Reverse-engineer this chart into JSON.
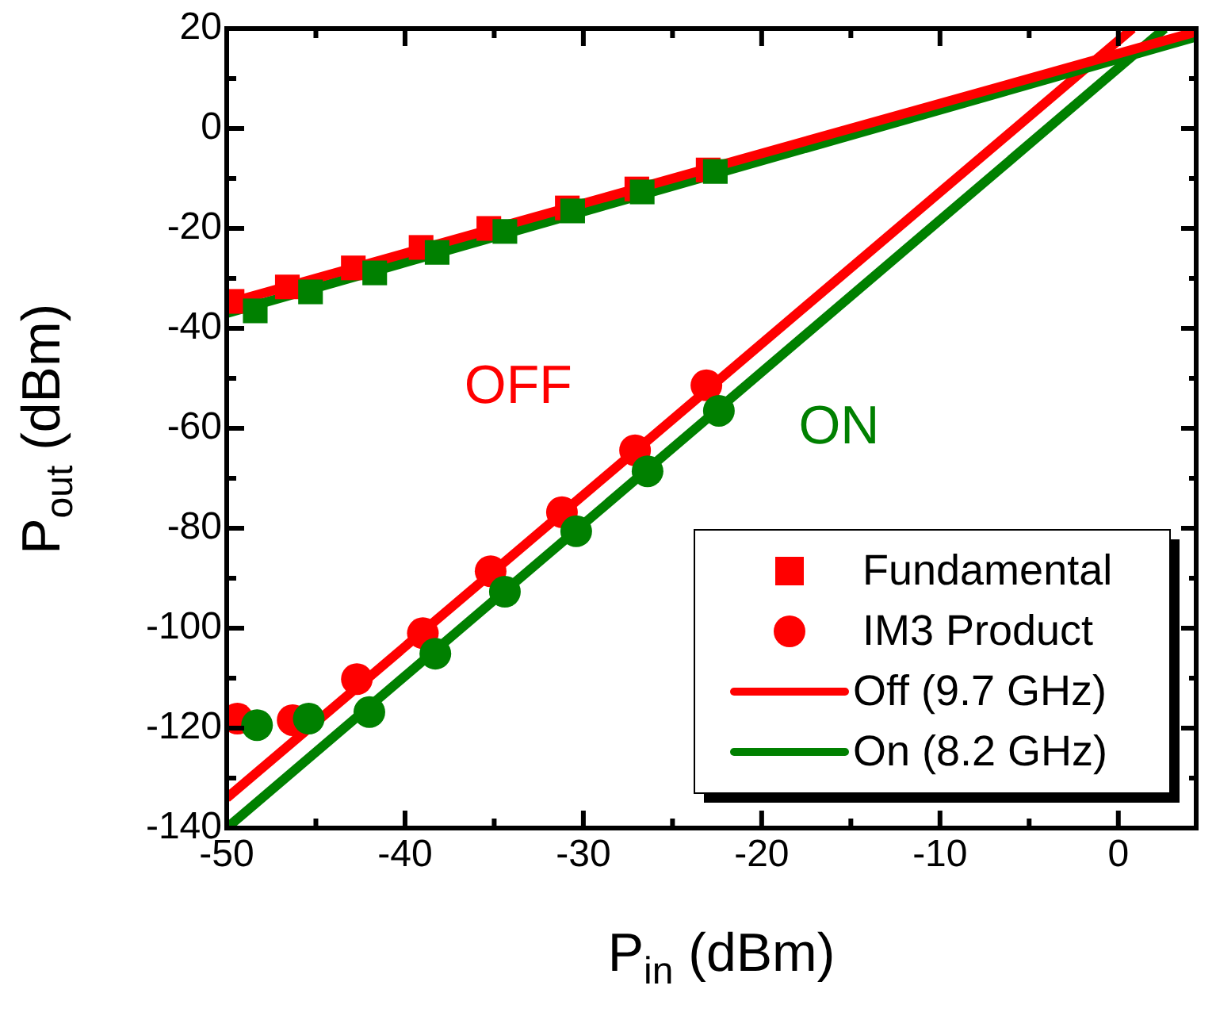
{
  "chart_data": {
    "type": "scatter",
    "xlabel": "P$_{in}$ (dBm)",
    "ylabel": "P$_{out}$ (dBm)",
    "xlim": [
      -50,
      4.5
    ],
    "ylim": [
      -140,
      20
    ],
    "xticks": [
      -50,
      {
        "value": -45,
        "label": null
      },
      -40,
      {
        "value": -35,
        "label": null
      },
      -30,
      {
        "value": -25,
        "label": null
      },
      -20,
      {
        "value": -15,
        "label": null
      },
      -10,
      {
        "value": -5,
        "label": null
      },
      0
    ],
    "yticks": [
      -140,
      {
        "value": -130,
        "label": null
      },
      -120,
      {
        "value": -110,
        "label": null
      },
      -100,
      {
        "value": -90,
        "label": null
      },
      -80,
      {
        "value": -70,
        "label": null
      },
      -60,
      {
        "value": -50,
        "label": null
      },
      -40,
      {
        "value": -30,
        "label": null
      },
      -20,
      {
        "value": -10,
        "label": null
      },
      0,
      {
        "value": 10,
        "label": null
      },
      20
    ],
    "legend": "bottom right",
    "series": [
      {
        "type": "scatter",
        "marker": "square",
        "color": "#008000",
        "x": [
          -48.4,
          -45.3,
          -41.7,
          -38.2,
          -34.4,
          -30.6,
          -26.7,
          -22.6
        ],
        "values": [
          -36.5,
          -32.7,
          -28.9,
          -24.8,
          -20.6,
          -16.5,
          -12.7,
          -8.6
        ]
      },
      {
        "type": "scatter",
        "marker": "circle",
        "color": "#008000",
        "x": [
          -48.3,
          -45.4,
          -42.0,
          -38.3,
          -34.4,
          -30.4,
          -26.4,
          -22.4
        ],
        "values": [
          -119.4,
          -118.1,
          -116.8,
          -105.1,
          -92.7,
          -80.6,
          -68.6,
          -56.5
        ]
      },
      {
        "name": "Fundamental",
        "type": "scatter",
        "marker": "square",
        "color": "#ff0000",
        "x": [
          -49.7,
          -46.6,
          -42.9,
          -39.1,
          -35.3,
          -30.9,
          -27.0,
          -23.0
        ],
        "values": [
          -34.6,
          -31.7,
          -27.9,
          -23.8,
          -20.0,
          -15.9,
          -12.1,
          -8.3
        ]
      },
      {
        "name": "IM3 Product",
        "type": "scatter",
        "marker": "circle",
        "color": "#ff0000",
        "x": [
          -49.4,
          -46.3,
          -42.7,
          -39.0,
          -35.2,
          -31.2,
          -27.1,
          -23.1
        ],
        "values": [
          -118.1,
          -118.4,
          -110.2,
          -101.0,
          -88.6,
          -76.8,
          -64.4,
          -51.4
        ]
      },
      {
        "name": "Off (9.7 GHz)",
        "type": "line",
        "marker": "none",
        "color": "#ff0000",
        "x": [
          -50,
          4.5
        ],
        "values": [
          -35,
          19.5
        ]
      },
      {
        "name": "On (8.2 GHz)",
        "type": "line",
        "marker": "none",
        "color": "#008000",
        "x": [
          -50,
          4.5
        ],
        "values": [
          -37,
          18.5
        ]
      },
      {
        "type": "line",
        "marker": "none",
        "color": "#ff0000",
        "x": [
          -50,
          0.8
        ],
        "values": [
          -134,
          20
        ]
      },
      {
        "type": "line",
        "marker": "none",
        "color": "#008000",
        "x": [
          -50,
          2.6
        ],
        "values": [
          -140,
          20
        ]
      }
    ],
    "annotations": [
      "OFF",
      "ON"
    ]
  }
}
